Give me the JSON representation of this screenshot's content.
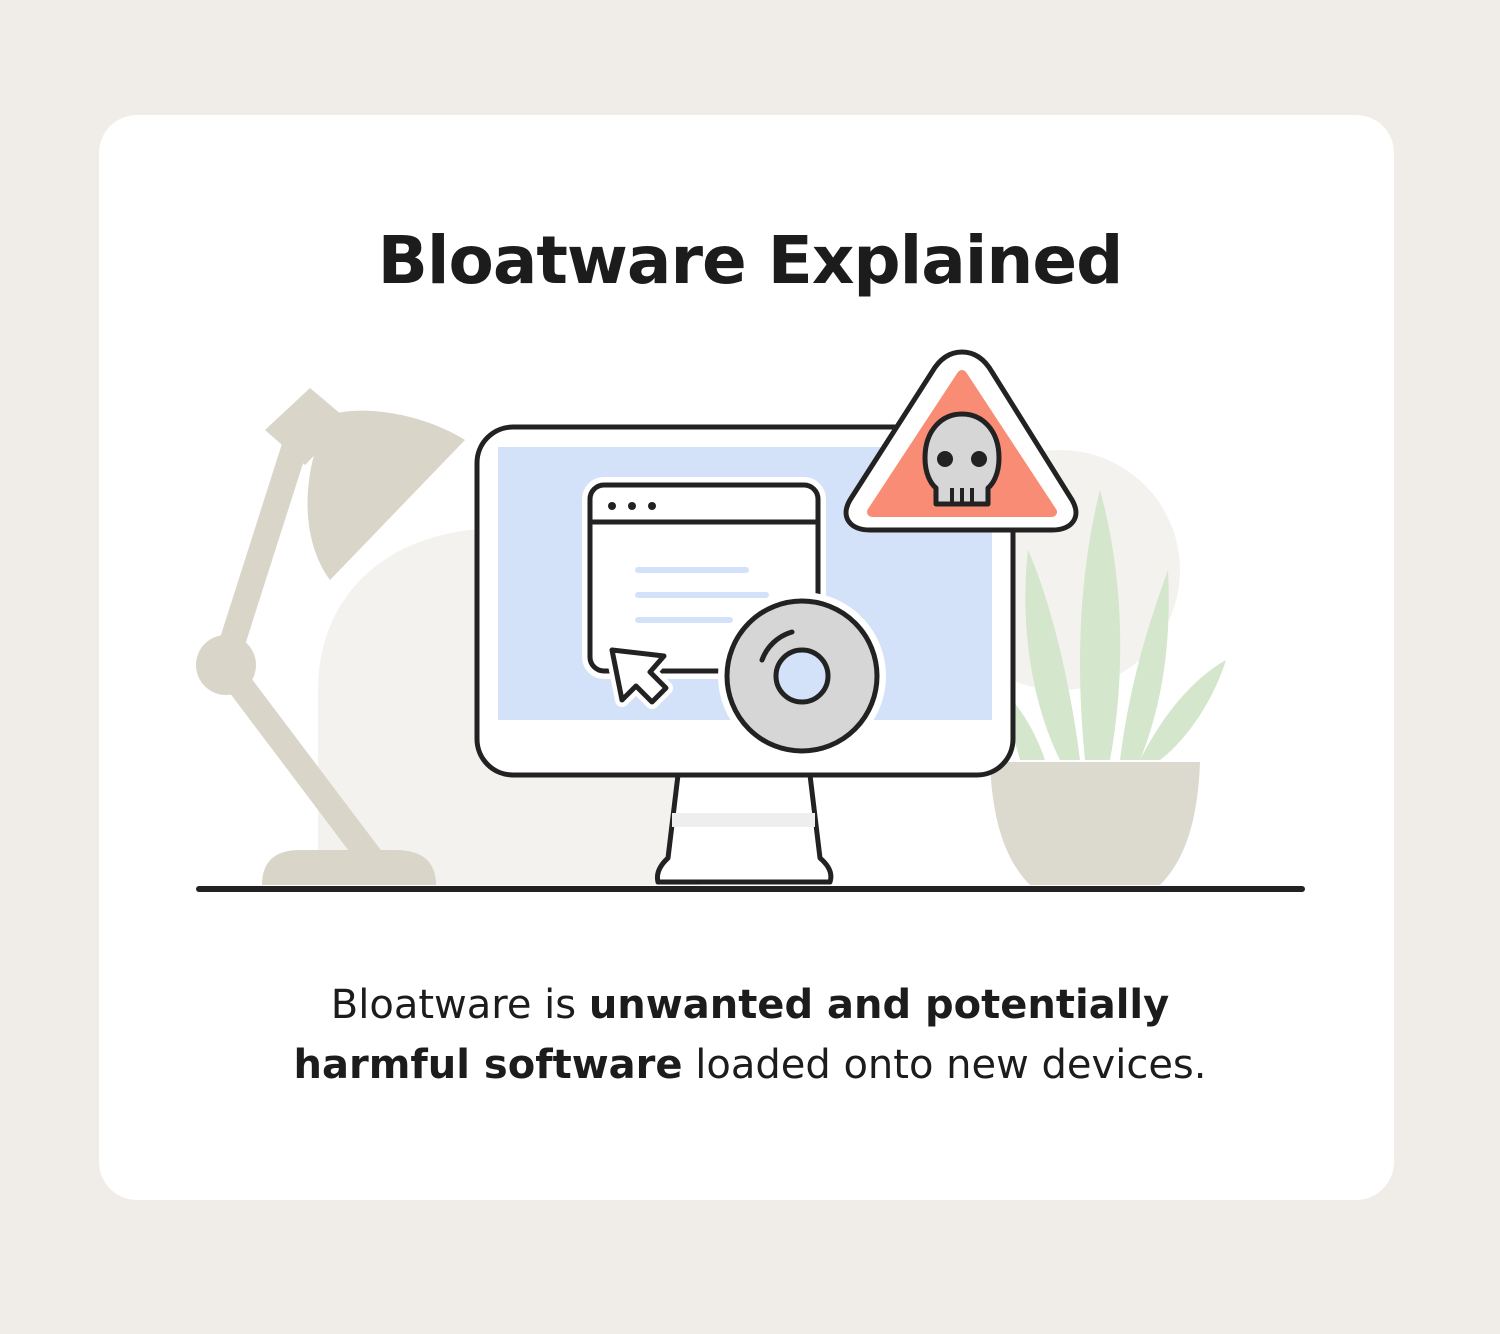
{
  "title": "Bloatware Explained",
  "caption": {
    "line1_plain": "Bloatware is ",
    "line1_bold": "unwanted and potentially",
    "line2_bold": "harmful software",
    "line2_plain": " loaded onto new devices."
  },
  "colors": {
    "background": "#f0ede9",
    "card": "#ffffff",
    "outline": "#222222",
    "screen": "#d3e2f9",
    "warning": "#f88c74",
    "lamp": "#d9d5c9",
    "plant": "#d4e6cc",
    "pot": "#dcd9cf",
    "disc": "#d6d6d6"
  },
  "icons": [
    "desk-lamp-icon",
    "monitor-icon",
    "browser-window-icon",
    "cursor-icon",
    "disc-icon",
    "warning-skull-icon",
    "potted-plant-icon"
  ]
}
